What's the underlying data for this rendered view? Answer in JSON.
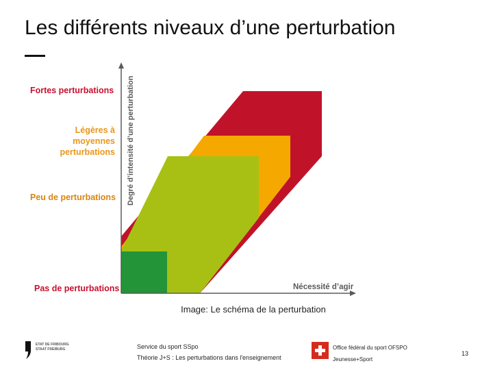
{
  "slide": {
    "title": "Les différents niveaux d’une perturbation",
    "caption": "Image: Le schéma de la perturbation",
    "page_number": "13"
  },
  "diagram": {
    "levels": {
      "strong": "Fortes perturbations",
      "light_line1": "Légères à moyennes",
      "light_line2": "perturbations",
      "few": "Peu de perturbations",
      "none": "Pas de perturbations"
    },
    "y_axis_label": "Degré d’intensité d’une perturbation",
    "x_axis_label": "Nécessité d’agir",
    "colors": {
      "strong": "#c0132a",
      "light": "#f5a800",
      "few": "#a8c014",
      "none": "#239438",
      "axis": "#5a5a5a"
    }
  },
  "footer": {
    "canton_line1": "ETAT DE FRIBOURG",
    "canton_line2": "STAAT FREIBURG",
    "service_line1": "Service du sport SSpo",
    "service_line2": "Théorie J+S : Les perturbations dans l'enseignement",
    "office_line1": "Office fédéral du sport OFSPO",
    "office_line2": "Jeunesse+Sport",
    "swiss_flag_icon": "swiss-cross-icon"
  }
}
